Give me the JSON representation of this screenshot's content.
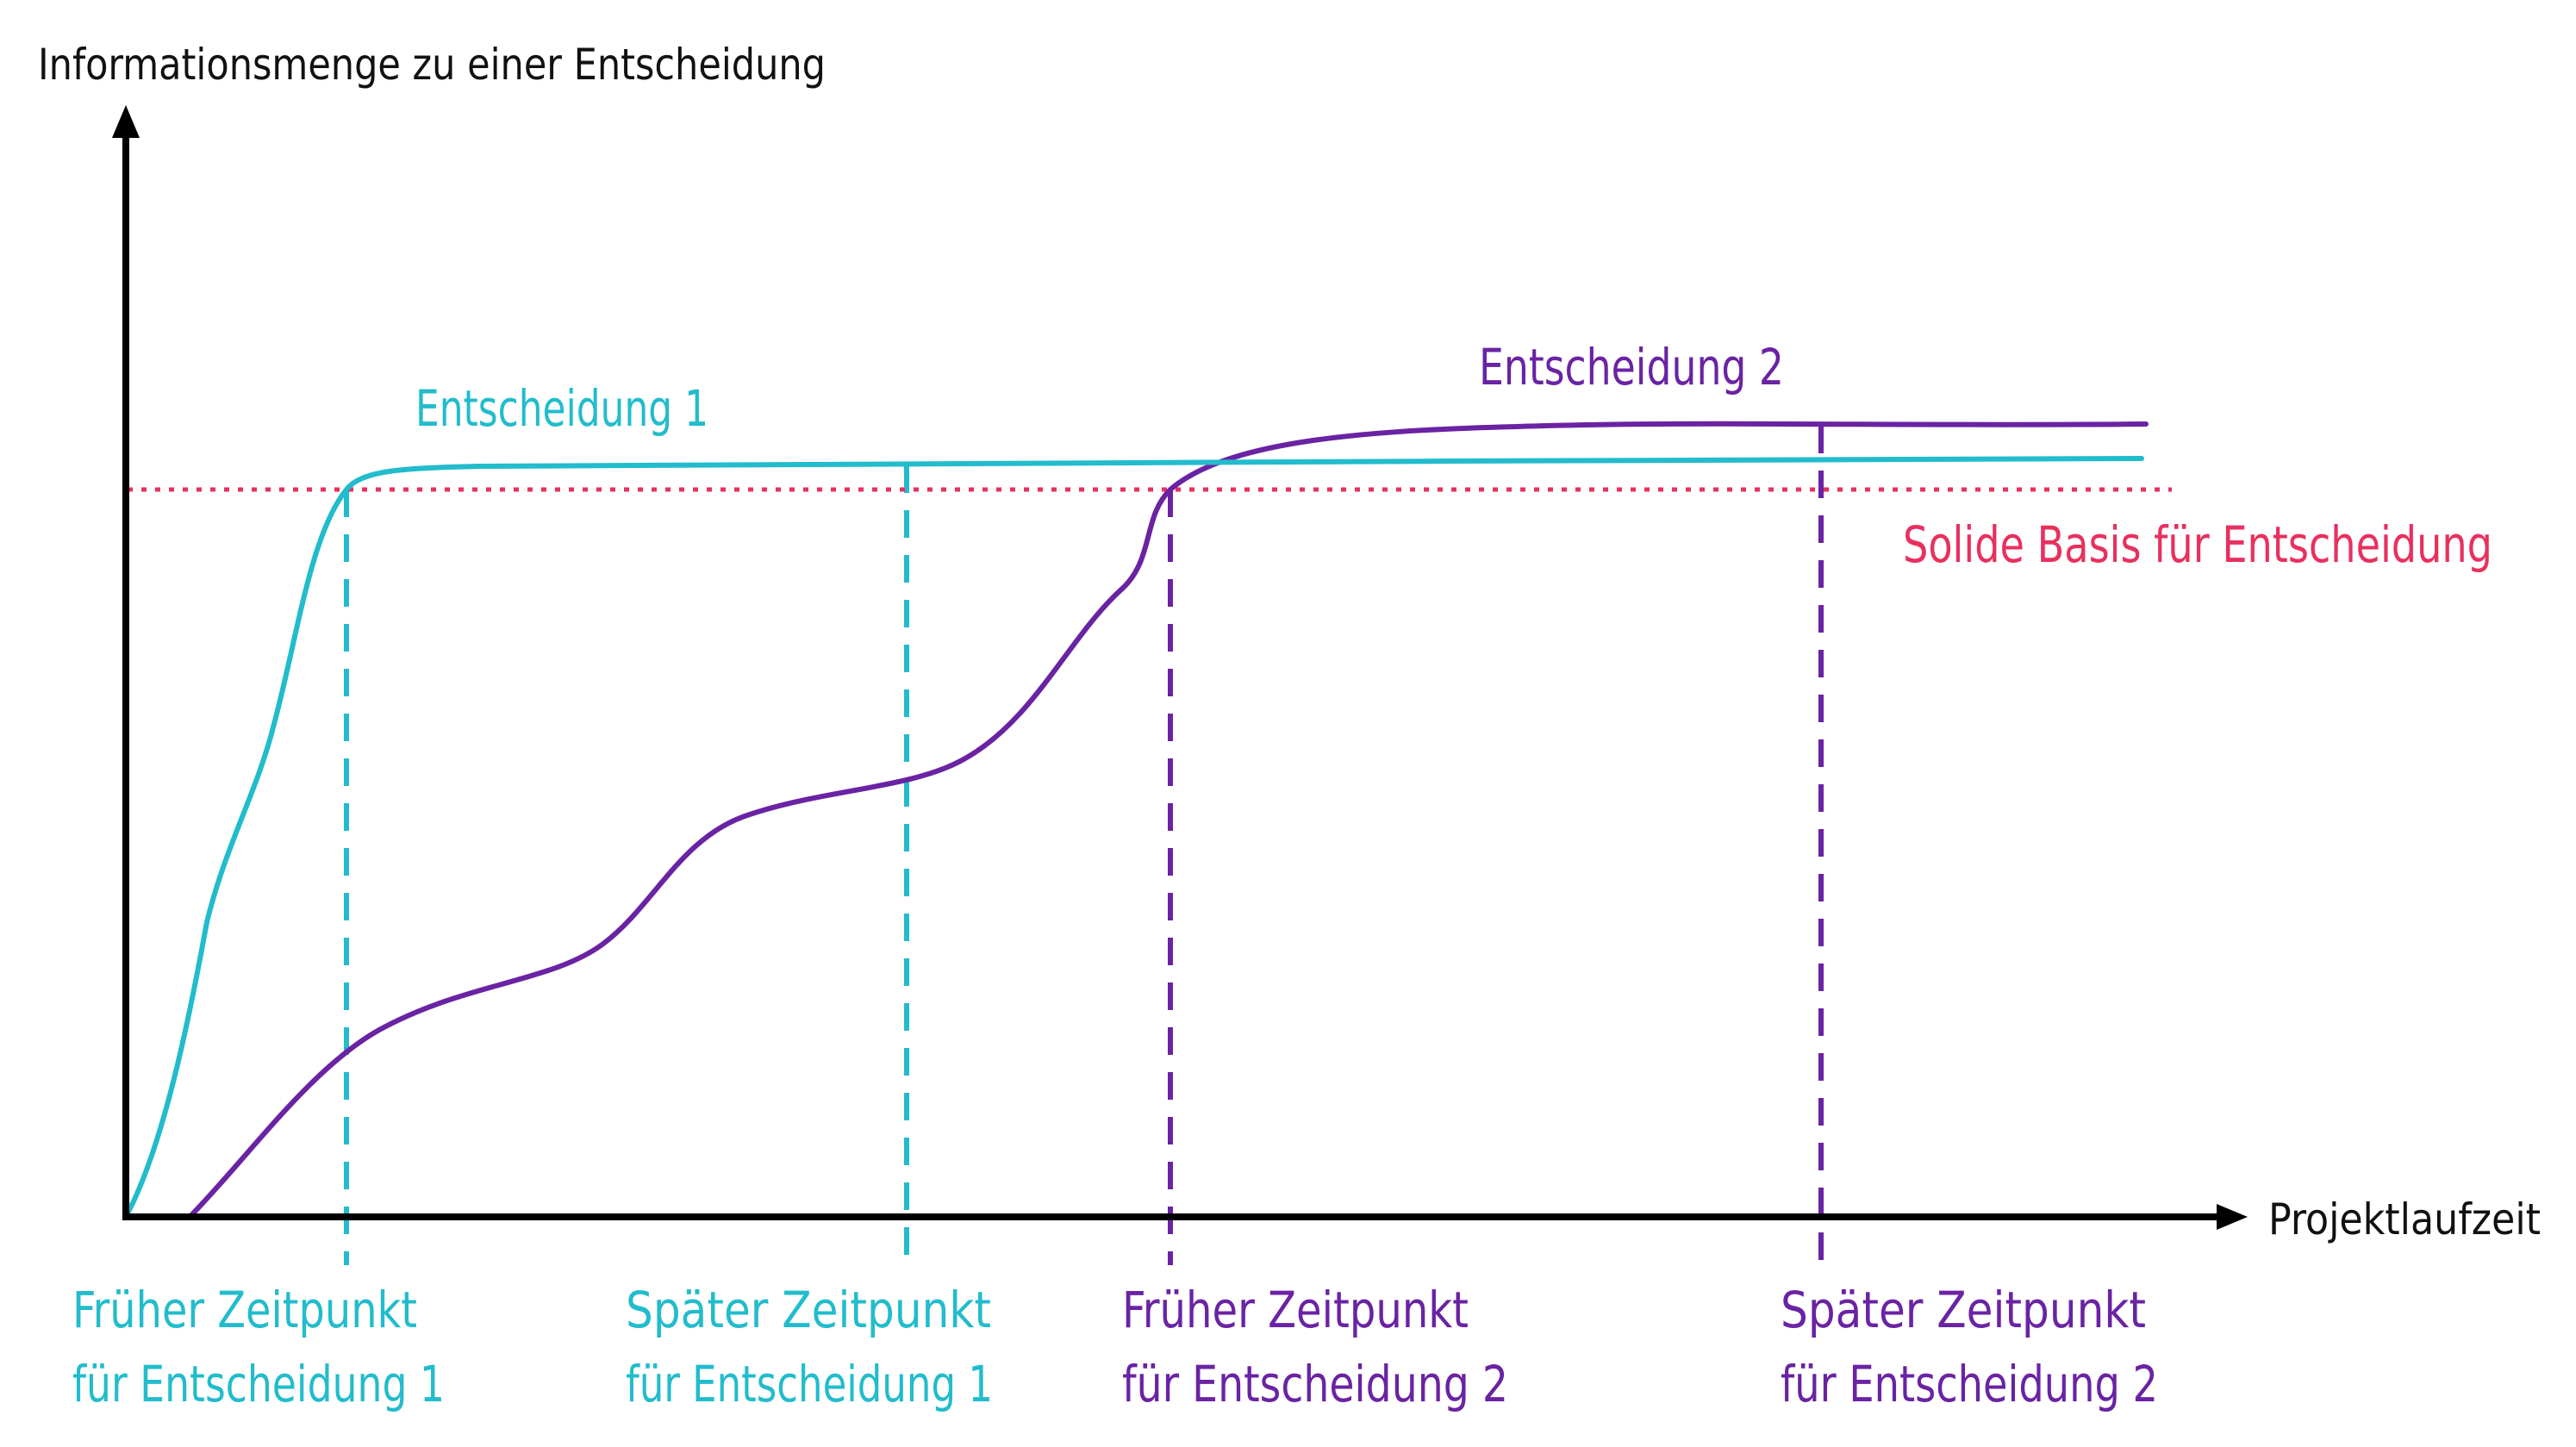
{
  "colors": {
    "axis": "#000000",
    "decision1": "#22bccc",
    "decision2": "#6a23a3",
    "threshold": "#e8305e"
  },
  "axes": {
    "y_label": "Informationsmenge zu einer Entscheidung",
    "x_label": "Projektlaufzeit"
  },
  "curves": {
    "decision1_label": "Entscheidung 1",
    "decision2_label": "Entscheidung 2"
  },
  "threshold": {
    "label": "Solide Basis für Entscheidung"
  },
  "markers": [
    {
      "line1": "Früher Zeitpunkt",
      "line2": "für Entscheidung 1"
    },
    {
      "line1": "Später Zeitpunkt",
      "line2": "für Entscheidung 1"
    },
    {
      "line1": "Früher Zeitpunkt",
      "line2": "für Entscheidung 2"
    },
    {
      "line1": "Später Zeitpunkt",
      "line2": "für Entscheidung 2"
    }
  ]
}
